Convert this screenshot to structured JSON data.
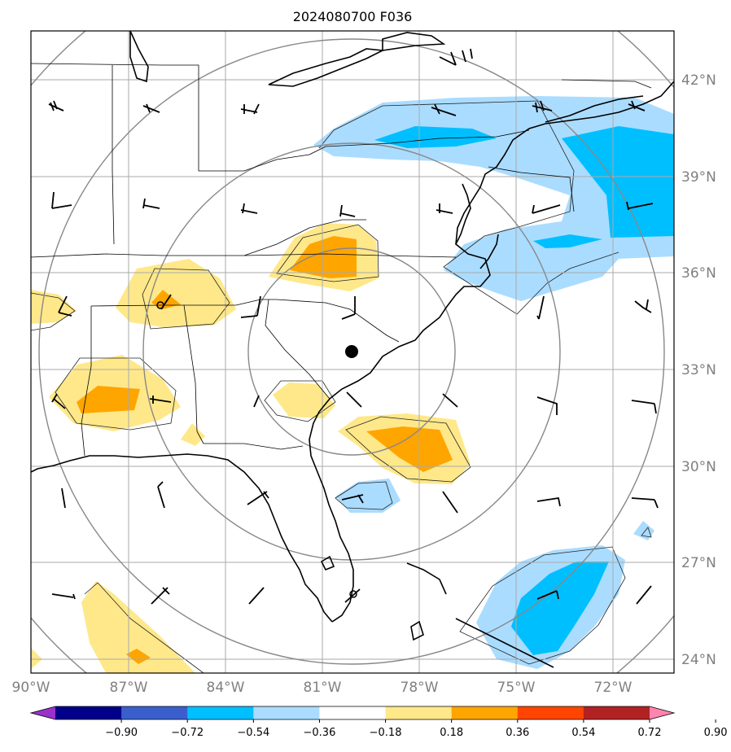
{
  "title": "2024080700 F036",
  "colors": {
    "strong_neg": "#00bfff",
    "weak_neg": "#aadcff",
    "weak_pos": "#ffe88a",
    "mid_pos": "#ffa500",
    "grid": "#aaaaaa",
    "range_ring": "#888888",
    "label": "#808080"
  },
  "lat_labels": [
    "42°N",
    "39°N",
    "36°N",
    "33°N",
    "30°N",
    "27°N",
    "24°N"
  ],
  "lon_labels": [
    "90°W",
    "87°W",
    "84°W",
    "81°W",
    "78°W",
    "75°W",
    "72°W"
  ],
  "colorbar": {
    "ticks": [
      "−0.90",
      "−0.72",
      "−0.54",
      "−0.36",
      "−0.18",
      "0.18",
      "0.36",
      "0.54",
      "0.72",
      "0.90"
    ],
    "segment_colors": [
      "#9932cc",
      "#00008b",
      "#3a5fcd",
      "#00bfff",
      "#aadcff",
      "#ffffff",
      "#ffe88a",
      "#ffa500",
      "#ff4500",
      "#b22222",
      "#ff85b0"
    ]
  },
  "center_marker": "storm-center-dot"
}
